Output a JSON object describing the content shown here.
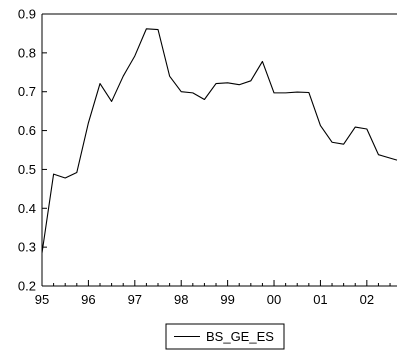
{
  "chart_data": {
    "type": "line",
    "title": "",
    "xlabel": "",
    "ylabel": "",
    "xlim": [
      1995.0,
      2002.65
    ],
    "ylim": [
      0.2,
      0.9
    ],
    "x_ticks": [
      {
        "value": 1995,
        "label": "95"
      },
      {
        "value": 1996,
        "label": "96"
      },
      {
        "value": 1997,
        "label": "97"
      },
      {
        "value": 1998,
        "label": "98"
      },
      {
        "value": 1999,
        "label": "99"
      },
      {
        "value": 2000,
        "label": "00"
      },
      {
        "value": 2001,
        "label": "01"
      },
      {
        "value": 2002,
        "label": "02"
      }
    ],
    "y_ticks": [
      {
        "value": 0.2,
        "label": "0.2"
      },
      {
        "value": 0.3,
        "label": "0.3"
      },
      {
        "value": 0.4,
        "label": "0.4"
      },
      {
        "value": 0.5,
        "label": "0.5"
      },
      {
        "value": 0.6,
        "label": "0.6"
      },
      {
        "value": 0.7,
        "label": "0.7"
      },
      {
        "value": 0.8,
        "label": "0.8"
      },
      {
        "value": 0.9,
        "label": "0.9"
      }
    ],
    "grid": false,
    "legend_position": "bottom-center",
    "series": [
      {
        "name": "BS_GE_ES",
        "color": "#000000",
        "points": [
          {
            "x": 1995.0,
            "y": 0.285
          },
          {
            "x": 1995.25,
            "y": 0.488
          },
          {
            "x": 1995.5,
            "y": 0.478
          },
          {
            "x": 1995.75,
            "y": 0.492
          },
          {
            "x": 1996.0,
            "y": 0.62
          },
          {
            "x": 1996.25,
            "y": 0.721
          },
          {
            "x": 1996.5,
            "y": 0.675
          },
          {
            "x": 1996.75,
            "y": 0.74
          },
          {
            "x": 1997.0,
            "y": 0.792
          },
          {
            "x": 1997.25,
            "y": 0.862
          },
          {
            "x": 1997.5,
            "y": 0.86
          },
          {
            "x": 1997.75,
            "y": 0.74
          },
          {
            "x": 1998.0,
            "y": 0.7
          },
          {
            "x": 1998.25,
            "y": 0.697
          },
          {
            "x": 1998.5,
            "y": 0.68
          },
          {
            "x": 1998.75,
            "y": 0.721
          },
          {
            "x": 1999.0,
            "y": 0.723
          },
          {
            "x": 1999.25,
            "y": 0.718
          },
          {
            "x": 1999.5,
            "y": 0.728
          },
          {
            "x": 1999.75,
            "y": 0.778
          },
          {
            "x": 2000.0,
            "y": 0.697
          },
          {
            "x": 2000.25,
            "y": 0.697
          },
          {
            "x": 2000.5,
            "y": 0.699
          },
          {
            "x": 2000.75,
            "y": 0.698
          },
          {
            "x": 2001.0,
            "y": 0.613
          },
          {
            "x": 2001.25,
            "y": 0.57
          },
          {
            "x": 2001.5,
            "y": 0.565
          },
          {
            "x": 2001.75,
            "y": 0.609
          },
          {
            "x": 2002.0,
            "y": 0.604
          },
          {
            "x": 2002.25,
            "y": 0.538
          },
          {
            "x": 2002.65,
            "y": 0.524
          }
        ]
      }
    ]
  }
}
